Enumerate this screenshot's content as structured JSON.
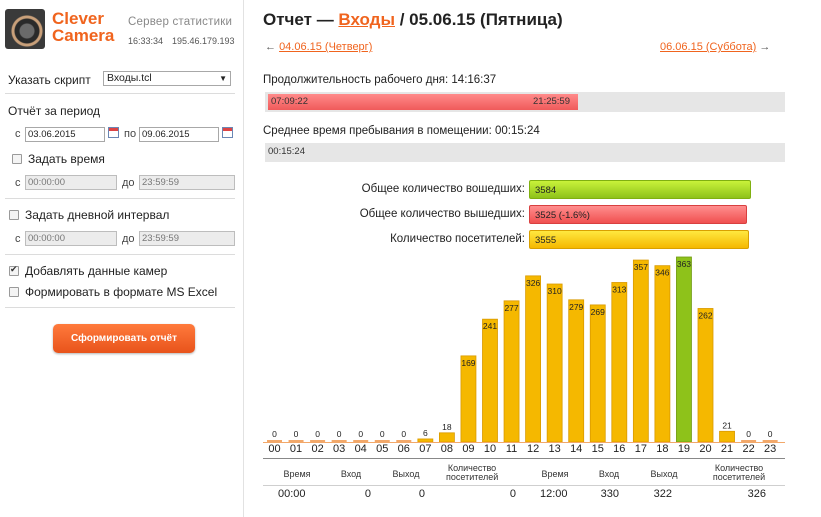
{
  "brand": {
    "line1": "Clever",
    "line2": "Camera"
  },
  "server": {
    "title": "Сервер статистики",
    "time": "16:33:34",
    "ip": "195.46.179.193"
  },
  "form": {
    "script_label": "Указать скрипт",
    "script_value": "Входы.tcl",
    "period_label": "Отчёт за период",
    "from_prefix": "с",
    "to_prefix": "по",
    "date_from": "03.06.2015",
    "date_to": "09.06.2015",
    "set_time_label": "Задать время",
    "time_from_prefix": "с",
    "time_to_prefix": "до",
    "time_from": "00:00:00",
    "time_to": "23:59:59",
    "day_interval_label": "Задать дневной интервал",
    "interval_from": "00:00:00",
    "interval_to": "23:59:59",
    "camera_data_label": "Добавлять данные камер",
    "camera_data_checked": true,
    "excel_label": "Формировать в формате MS Excel",
    "excel_checked": false,
    "submit_label": "Сформировать отчёт"
  },
  "report": {
    "title_prefix": "Отчет — ",
    "title_link": "Входы",
    "title_suffix": " / 05.06.15 (Пятница)",
    "prev_arrow": "←",
    "prev_label": "04.06.15 (Четверг)",
    "next_label": "06.06.15 (Суббота)",
    "next_arrow": "→",
    "workday_label": "Продолжительность рабочего дня: 14:16:37",
    "workday_start": "07:09:22",
    "workday_end": "21:25:59",
    "avg_label": "Среднее время пребывания в помещении: 00:15:24",
    "avg_value": "00:15:24",
    "stats": [
      {
        "label": "Общее количество вошедших:",
        "value": "3584"
      },
      {
        "label": "Общее количество вышедших:",
        "value": "3525 (-1.6%)"
      },
      {
        "label": "Количество посетителей:",
        "value": "3555"
      }
    ],
    "colors": {
      "accent": "#f0641e",
      "bar_normal": "#f5b800",
      "bar_peak": "#8ec21a"
    }
  },
  "chart_data": {
    "type": "bar",
    "categories": [
      "00",
      "01",
      "02",
      "03",
      "04",
      "05",
      "06",
      "07",
      "08",
      "09",
      "10",
      "11",
      "12",
      "13",
      "14",
      "15",
      "16",
      "17",
      "18",
      "19",
      "20",
      "21",
      "22",
      "23"
    ],
    "values": [
      0,
      0,
      0,
      0,
      0,
      0,
      0,
      6,
      18,
      169,
      241,
      277,
      326,
      310,
      279,
      269,
      313,
      357,
      346,
      363,
      262,
      21,
      0,
      0
    ],
    "ylim": [
      0,
      363
    ],
    "highlight_index": 19
  },
  "table": {
    "headers": [
      "Время",
      "Вход",
      "Выход",
      "Количество посетителей",
      "Время",
      "Вход",
      "Выход",
      "Количество посетителей"
    ],
    "rows": [
      [
        "00:00",
        "0",
        "0",
        "0",
        "12:00",
        "330",
        "322",
        "326"
      ]
    ]
  }
}
